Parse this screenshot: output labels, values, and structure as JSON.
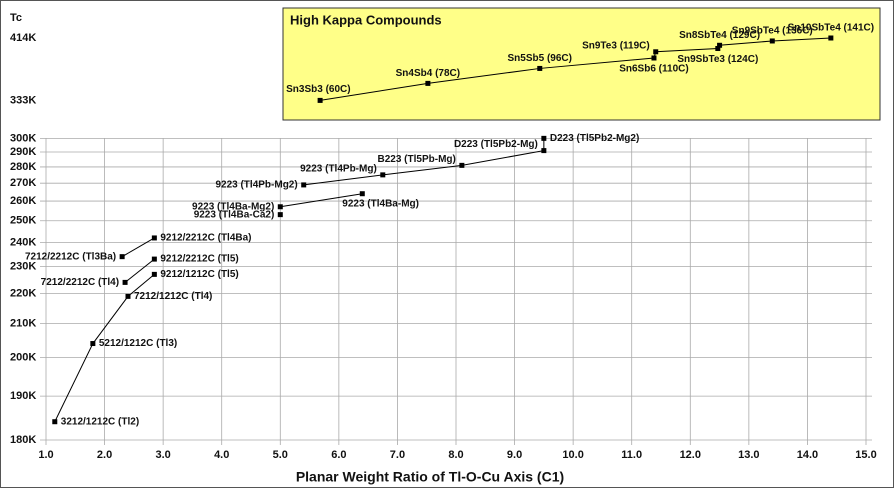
{
  "chart_data": {
    "type": "line",
    "ylabel": "Tc",
    "xlabel": "Planar Weight Ratio of Tl-O-Cu Axis (C1)",
    "inset_title": "High Kappa Compounds",
    "color": "#000000",
    "grid": true,
    "xlim": [
      1,
      15
    ],
    "xticks": [
      {
        "value": 1,
        "label": "1.0"
      },
      {
        "value": 2,
        "label": "2.0"
      },
      {
        "value": 3,
        "label": "3.0"
      },
      {
        "value": 4,
        "label": "4.0"
      },
      {
        "value": 5,
        "label": "5.0"
      },
      {
        "value": 6,
        "label": "6.0"
      },
      {
        "value": 7,
        "label": "7.0"
      },
      {
        "value": 8,
        "label": "8.0"
      },
      {
        "value": 9,
        "label": "9.0"
      },
      {
        "value": 10,
        "label": "10.0"
      },
      {
        "value": 11,
        "label": "11.0"
      },
      {
        "value": 12,
        "label": "12.0"
      },
      {
        "value": 13,
        "label": "13.0"
      },
      {
        "value": 14,
        "label": "14.0"
      },
      {
        "value": 15,
        "label": "15.0"
      }
    ],
    "ylim": [
      180,
      414
    ],
    "yticks": [
      {
        "value": 180,
        "label": "180K"
      },
      {
        "value": 190,
        "label": "190K"
      },
      {
        "value": 200,
        "label": "200K"
      },
      {
        "value": 210,
        "label": "210K"
      },
      {
        "value": 220,
        "label": "220K"
      },
      {
        "value": 230,
        "label": "230K"
      },
      {
        "value": 240,
        "label": "240K"
      },
      {
        "value": 250,
        "label": "250K"
      },
      {
        "value": 260,
        "label": "260K"
      },
      {
        "value": 270,
        "label": "270K"
      },
      {
        "value": 280,
        "label": "280K"
      },
      {
        "value": 290,
        "label": "290K"
      },
      {
        "value": 300,
        "label": "300K"
      },
      {
        "value": 333,
        "label": "333K"
      },
      {
        "value": 414,
        "label": "414K"
      }
    ],
    "series": [
      {
        "labels": [
          "3212/1212C (Tl2)",
          "5212/1212C (Tl3)",
          "7212/1212C (Tl4)",
          "9212/1212C (Tl5)"
        ],
        "x": [
          1.15,
          1.8,
          2.4,
          2.85
        ],
        "values": [
          184,
          204,
          219,
          227
        ]
      },
      {
        "labels": [
          "7212/2212C (Tl4)",
          "9212/2212C (Tl5)"
        ],
        "x": [
          2.35,
          2.85
        ],
        "values": [
          224,
          233
        ]
      },
      {
        "labels": [
          "7212/2212C (Tl3Ba)",
          "9212/2212C (Tl4Ba)"
        ],
        "x": [
          2.3,
          2.85
        ],
        "values": [
          234,
          242
        ]
      },
      {
        "labels": [
          "9223 (Tl4Ba-Mg2)",
          "9223 (Tl4Ba-Mg)"
        ],
        "x": [
          5.0,
          6.4
        ],
        "values": [
          257,
          264
        ]
      },
      {
        "labels": [
          "9223 (Tl4Ba-Ca2)"
        ],
        "x": [
          5.0
        ],
        "values": [
          253
        ]
      },
      {
        "labels": [
          "9223 (Tl4Pb-Mg2)",
          "9223 (Tl4Pb-Mg)",
          "B223 (Tl5Pb-Mg)",
          "D223 (Tl5Pb2-Mg)",
          "D223 (Tl5Pb2-Mg2)"
        ],
        "x": [
          5.4,
          6.75,
          8.1,
          9.5,
          9.5
        ],
        "values": [
          269,
          275,
          281,
          291,
          300
        ]
      },
      {
        "labels": [
          "Sn3Sb3 (60C)",
          "Sn4Sb4 (78C)",
          "Sn5Sb5 (96C)",
          "Sn6Sb6 (110C)",
          "Sn9Te3 (119C)",
          "Sn9SbTe3 (124C)",
          "Sn8SbTe4 (129C)",
          "Sn9SbTe4 (136C)",
          "Sn10SbTe4 (141C)"
        ],
        "x": [
          5.68,
          7.52,
          9.43,
          11.38,
          11.41,
          12.47,
          12.5,
          13.4,
          14.4
        ],
        "values": [
          333,
          351,
          369,
          383,
          392,
          397,
          402,
          409,
          414
        ]
      }
    ]
  }
}
